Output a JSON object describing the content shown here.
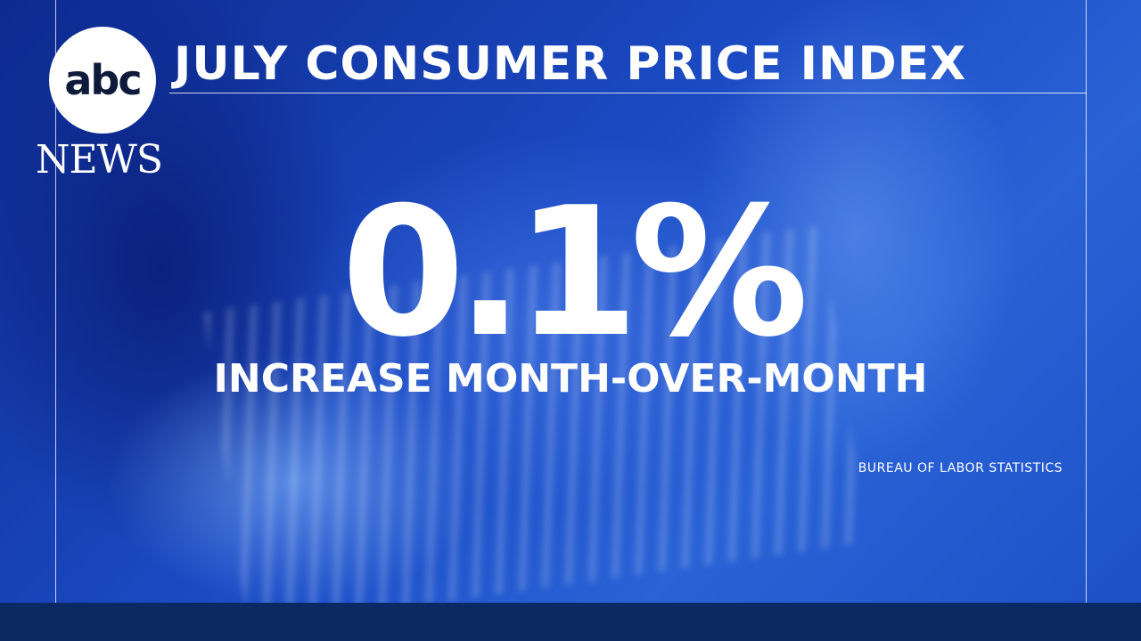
{
  "logo": {
    "mark": "abc",
    "wordmark": "NEWS"
  },
  "header": {
    "title": "JULY CONSUMER PRICE INDEX"
  },
  "stat": {
    "value": "0.1%",
    "caption": "INCREASE MONTH-OVER-MONTH"
  },
  "source": "BUREAU OF LABOR STATISTICS"
}
